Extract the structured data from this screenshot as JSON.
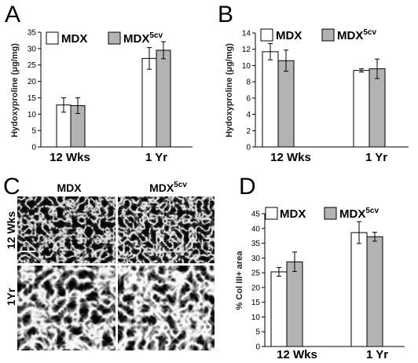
{
  "chart_data": [
    {
      "panel_label": "A",
      "type": "bar",
      "ylabel": "Hydoxyproline (μg/mg)",
      "categories": [
        "12 Wks",
        "1 Yr"
      ],
      "ylim": [
        0,
        35
      ],
      "yticks": [
        0,
        5,
        10,
        15,
        20,
        25,
        30,
        35
      ],
      "grid": false,
      "legend_position": "top",
      "error_bars": true,
      "series": [
        {
          "name": "MDX",
          "color": "#ffffff",
          "values": [
            12.8,
            27.0
          ],
          "errors": [
            2.2,
            3.3
          ]
        },
        {
          "name": "MDX",
          "name_sup": "5cv",
          "color": "#b3b3b3",
          "values": [
            12.6,
            29.5
          ],
          "errors": [
            2.4,
            2.6
          ]
        }
      ]
    },
    {
      "panel_label": "B",
      "type": "bar",
      "ylabel": "Hydoxyproline (μg/mg)",
      "categories": [
        "12 Wks",
        "1 Yr"
      ],
      "ylim": [
        0,
        14
      ],
      "yticks": [
        0,
        2,
        4,
        6,
        8,
        10,
        12,
        14
      ],
      "grid": false,
      "legend_position": "top",
      "error_bars": true,
      "series": [
        {
          "name": "MDX",
          "color": "#ffffff",
          "values": [
            11.7,
            9.4
          ],
          "errors": [
            1.0,
            0.2
          ]
        },
        {
          "name": "MDX",
          "name_sup": "5cv",
          "color": "#b3b3b3",
          "values": [
            10.6,
            9.6
          ],
          "errors": [
            1.3,
            1.2
          ]
        }
      ]
    },
    {
      "panel_label": "D",
      "type": "bar",
      "ylabel": "% Col III+ area",
      "categories": [
        "12 Wks",
        "1 Yr"
      ],
      "ylim": [
        0,
        45
      ],
      "yticks": [
        0,
        5,
        10,
        15,
        20,
        25,
        30,
        35,
        40,
        45
      ],
      "grid": false,
      "legend_position": "top",
      "error_bars": true,
      "series": [
        {
          "name": "MDX",
          "color": "#ffffff",
          "values": [
            25.3,
            38.6
          ],
          "errors": [
            1.5,
            3.7
          ]
        },
        {
          "name": "MDX",
          "name_sup": "5cv",
          "color": "#b3b3b3",
          "values": [
            28.7,
            37.2
          ],
          "errors": [
            3.3,
            1.5
          ]
        }
      ]
    }
  ],
  "histology": {
    "panel_label": "C",
    "columns": [
      {
        "label": "MDX"
      },
      {
        "label": "MDX",
        "sup": "5cv"
      }
    ],
    "rows": [
      {
        "label": "12 Wks"
      },
      {
        "label": "1Yr"
      }
    ]
  }
}
